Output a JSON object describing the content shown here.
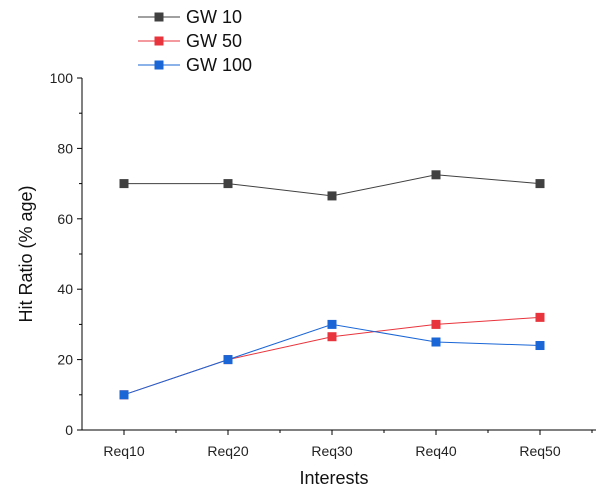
{
  "chart_data": {
    "type": "line",
    "categories": [
      "Req10",
      "Req20",
      "Req30",
      "Req40",
      "Req50"
    ],
    "xlabel": "Interests",
    "ylabel": "Hit Ratio (% age)",
    "ylim": [
      0,
      100
    ],
    "yticks": [
      0,
      20,
      40,
      60,
      80,
      100
    ],
    "grid": false,
    "legend_position": "top-left",
    "series": [
      {
        "name": "GW 10",
        "color": "#404040",
        "values": [
          70,
          70,
          66.5,
          72.5,
          70
        ]
      },
      {
        "name": "GW 50",
        "color": "#e8343c",
        "values": [
          10,
          20,
          26.5,
          30,
          32
        ]
      },
      {
        "name": "GW 100",
        "color": "#1a66d6",
        "values": [
          10,
          20,
          30,
          25,
          24
        ]
      }
    ]
  }
}
